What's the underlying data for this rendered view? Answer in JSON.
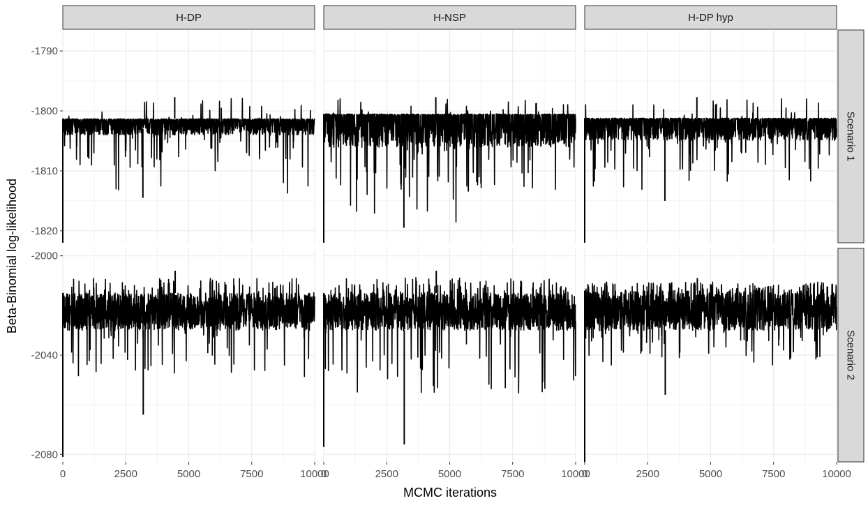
{
  "chart_data": {
    "type": "line",
    "xlabel": "MCMC iterations",
    "ylabel": "Beta-Binomial log-likelihood",
    "facet_columns": [
      "H-DP",
      "H-NSP",
      "H-DP hyp"
    ],
    "facet_rows": [
      "Scenario 1",
      "Scenario 2"
    ],
    "x_range": [
      0,
      10000
    ],
    "x_ticks": [
      0,
      2500,
      5000,
      7500,
      10000
    ],
    "x_tick_labels": [
      "0",
      "2500",
      "5000",
      "7500",
      "10000"
    ],
    "rows": [
      {
        "name": "Scenario 1",
        "ylim": [
          -1822,
          -1786.5
        ],
        "y_ticks": [
          -1790,
          -1800,
          -1810,
          -1820
        ],
        "y_tick_labels": [
          "-1790",
          "-1800",
          "-1810",
          "-1820"
        ],
        "panels": [
          {
            "column": "H-DP",
            "start": -1822,
            "typical_top": -1801.3,
            "typical_band": [
              -1801.3,
              -1803.0
            ],
            "max": -1797.7,
            "min": -1814.5
          },
          {
            "column": "H-NSP",
            "start": -1822,
            "typical_top": -1800.5,
            "typical_band": [
              -1800.5,
              -1804.0
            ],
            "max": -1797.7,
            "min": -1819.5
          },
          {
            "column": "H-DP hyp",
            "start": -1822,
            "typical_top": -1801.2,
            "typical_band": [
              -1801.2,
              -1803.5
            ],
            "max": -1797.7,
            "min": -1815.0
          }
        ]
      },
      {
        "name": "Scenario 2",
        "ylim": [
          -2083,
          -1997
        ],
        "y_ticks": [
          -2000,
          -2040,
          -2080
        ],
        "y_tick_labels": [
          "-2000",
          "-2040",
          "-2080"
        ],
        "panels": [
          {
            "column": "H-DP",
            "start": -2081,
            "typical_top": -2015,
            "typical_band": [
              -2015,
              -2030
            ],
            "max": -2006,
            "min": -2064
          },
          {
            "column": "H-NSP",
            "start": -2077,
            "typical_top": -2015,
            "typical_band": [
              -2015,
              -2030
            ],
            "max": -2006,
            "min": -2076
          },
          {
            "column": "H-DP hyp",
            "start": -2083,
            "typical_top": -2014,
            "typical_band": [
              -2014,
              -2030
            ],
            "max": -2009,
            "min": -2056
          }
        ]
      }
    ]
  }
}
